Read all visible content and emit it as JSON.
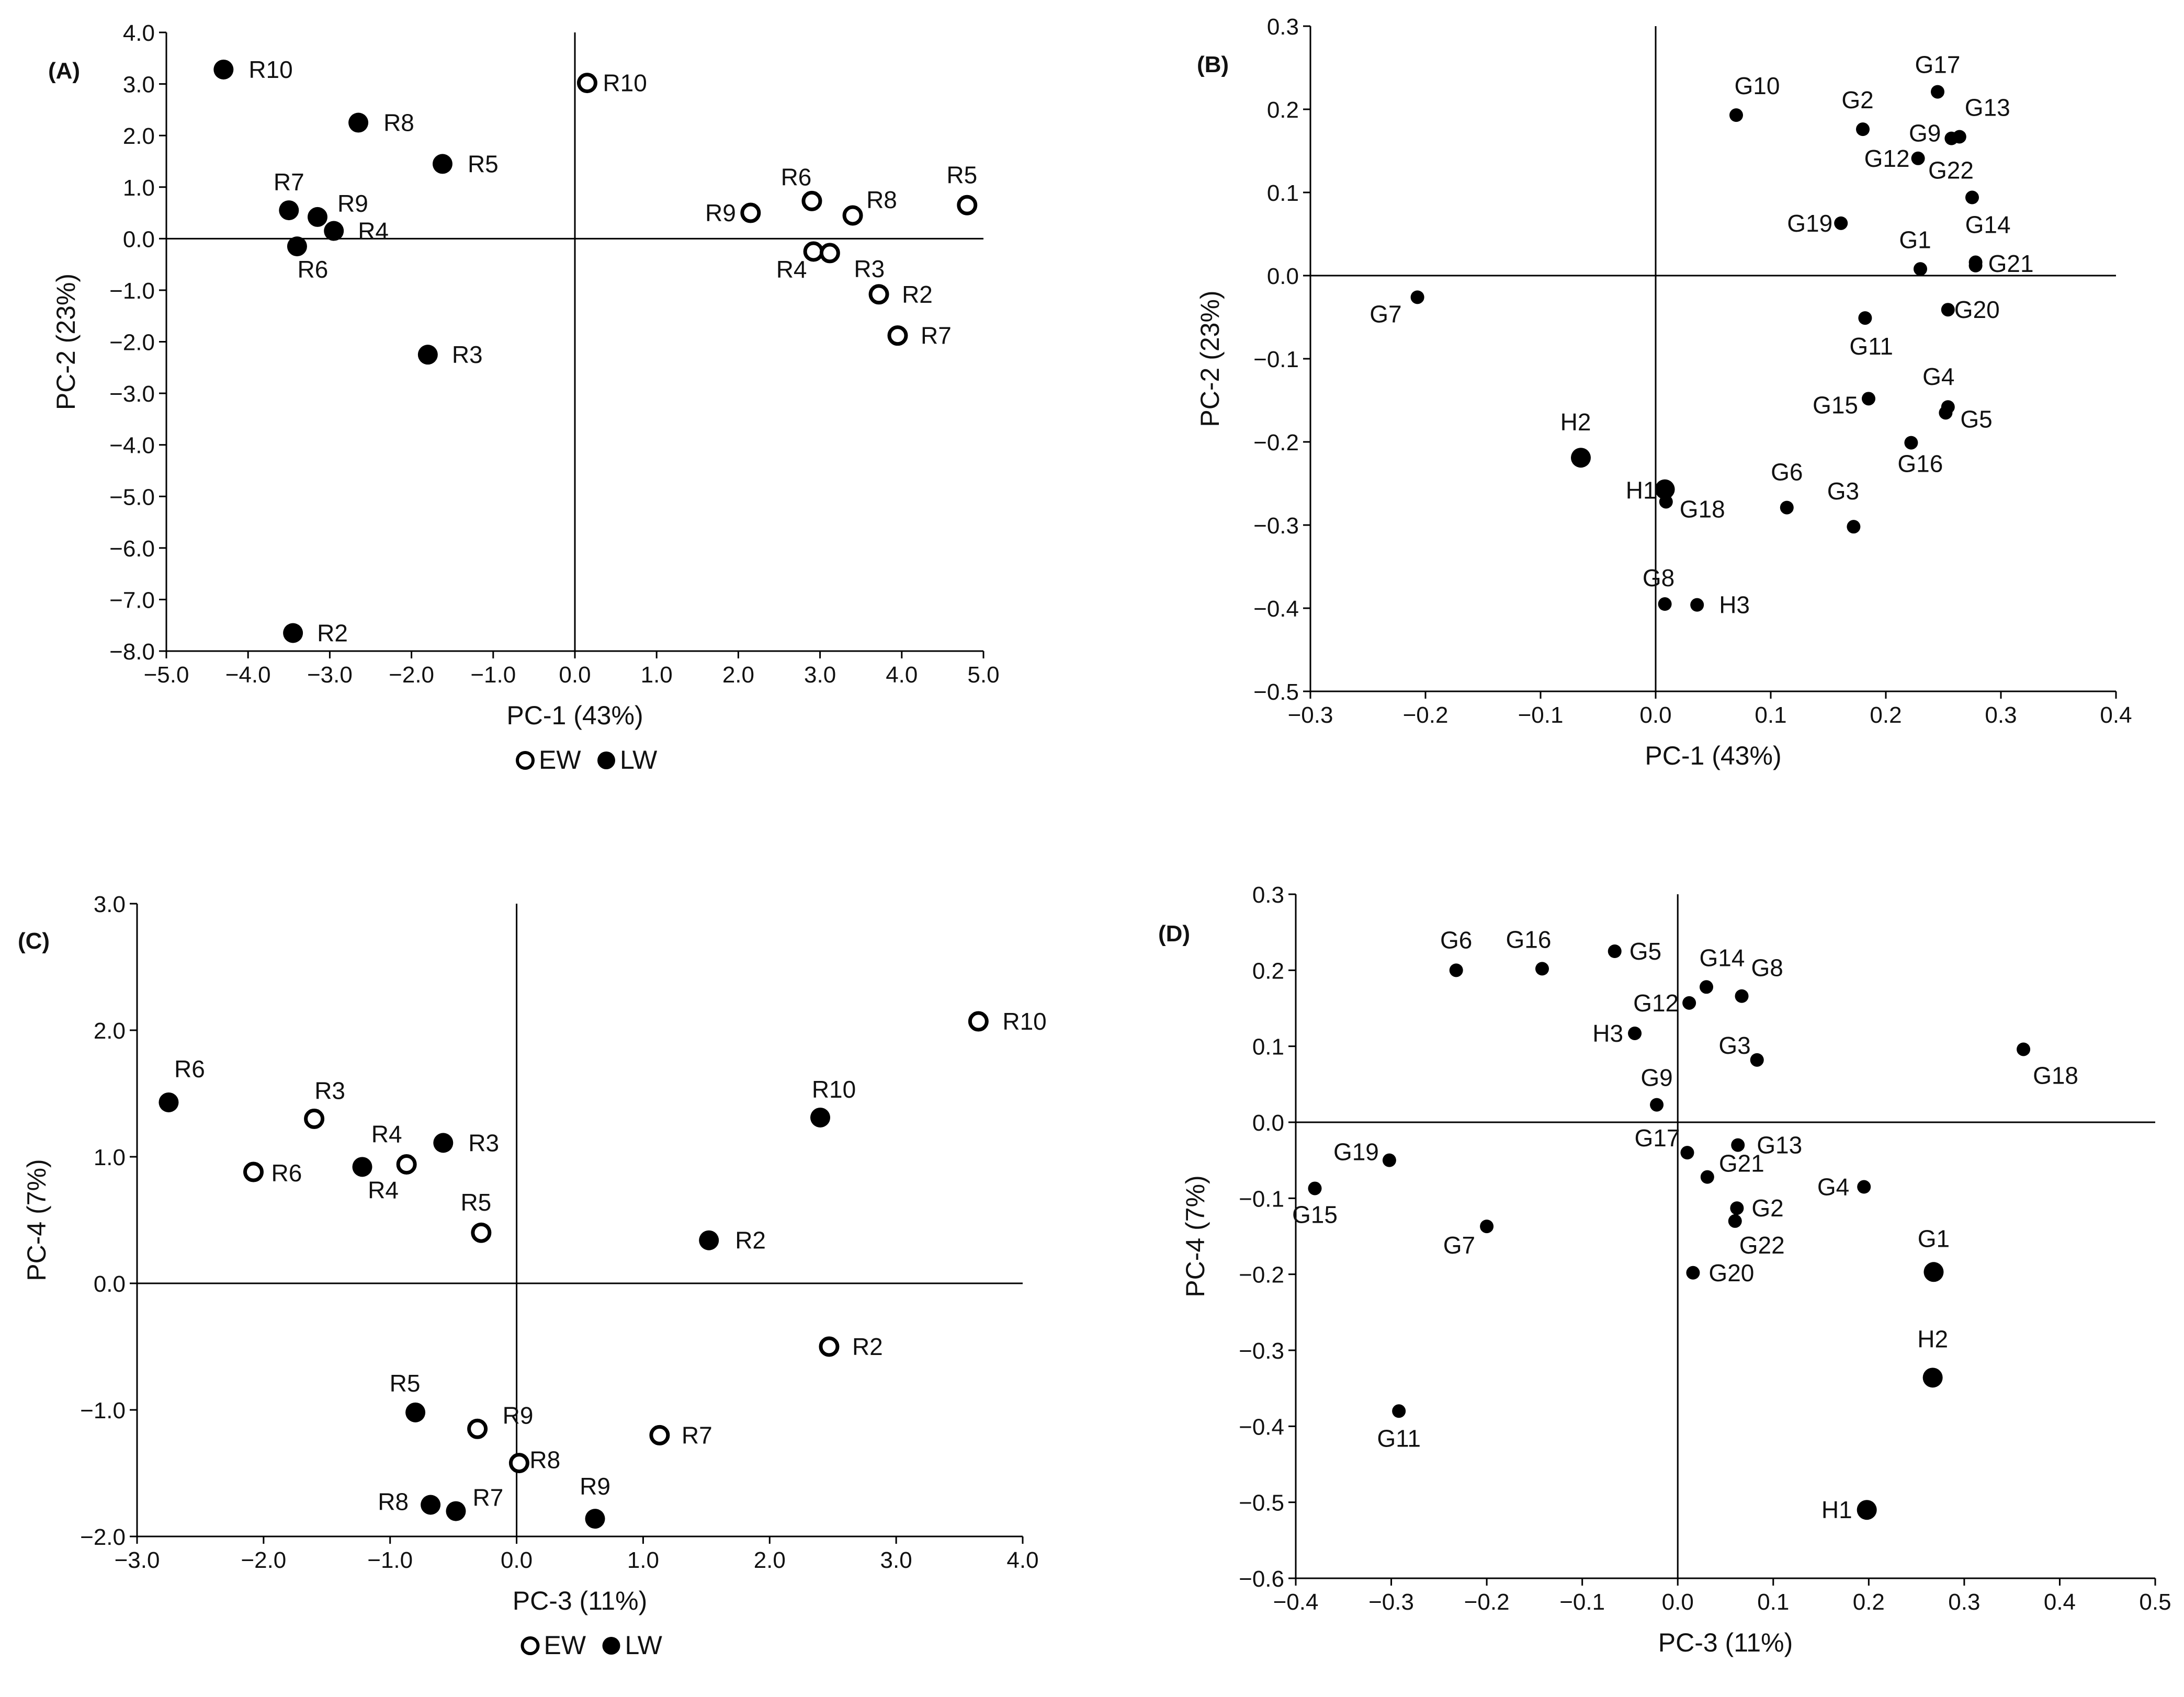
{
  "chart_data": [
    {
      "panel": "(A)",
      "type": "scatter",
      "xlabel": "PC-1 (43%)",
      "ylabel": "PC-2 (23%)",
      "xlim": [
        -5.0,
        5.0
      ],
      "ylim": [
        -8.0,
        4.0
      ],
      "xticks": [
        -5.0,
        -4.0,
        -3.0,
        -2.0,
        -1.0,
        0.0,
        1.0,
        2.0,
        3.0,
        4.0,
        5.0
      ],
      "yticks": [
        -8.0,
        -7.0,
        -6.0,
        -5.0,
        -4.0,
        -3.0,
        -2.0,
        -1.0,
        0.0,
        1.0,
        2.0,
        3.0,
        4.0
      ],
      "tick_decimals": 1,
      "legend": [
        "EW",
        "LW"
      ],
      "series": [
        {
          "name": "EW",
          "style": "open",
          "points": [
            {
              "label": "R10",
              "x": 0.15,
              "y": 3.02
            },
            {
              "label": "R9",
              "x": 2.15,
              "y": 0.5
            },
            {
              "label": "R6",
              "x": 2.9,
              "y": 0.73
            },
            {
              "label": "R8",
              "x": 3.4,
              "y": 0.45
            },
            {
              "label": "R5",
              "x": 4.8,
              "y": 0.65
            },
            {
              "label": "R4",
              "x": 2.92,
              "y": -0.25
            },
            {
              "label": "R3",
              "x": 3.12,
              "y": -0.28
            },
            {
              "label": "R2",
              "x": 3.72,
              "y": -1.08
            },
            {
              "label": "R7",
              "x": 3.95,
              "y": -1.88
            }
          ]
        },
        {
          "name": "LW",
          "style": "filled",
          "points": [
            {
              "label": "R10",
              "x": -4.3,
              "y": 3.28
            },
            {
              "label": "R8",
              "x": -2.65,
              "y": 2.25
            },
            {
              "label": "R5",
              "x": -1.62,
              "y": 1.45
            },
            {
              "label": "R7",
              "x": -3.5,
              "y": 0.55
            },
            {
              "label": "R9",
              "x": -3.15,
              "y": 0.42
            },
            {
              "label": "R4",
              "x": -2.95,
              "y": 0.15
            },
            {
              "label": "R6",
              "x": -3.4,
              "y": -0.15
            },
            {
              "label": "R3",
              "x": -1.8,
              "y": -2.25
            },
            {
              "label": "R2",
              "x": -3.45,
              "y": -7.65
            }
          ]
        }
      ]
    },
    {
      "panel": "(B)",
      "type": "scatter",
      "xlabel": "PC-1 (43%)",
      "ylabel": "PC-2 (23%)",
      "xlim": [
        -0.3,
        0.4
      ],
      "ylim": [
        -0.5,
        0.3
      ],
      "xticks": [
        -0.3,
        -0.2,
        -0.1,
        0.0,
        0.1,
        0.2,
        0.3,
        0.4
      ],
      "yticks": [
        -0.5,
        -0.4,
        -0.3,
        -0.2,
        -0.1,
        0.0,
        0.1,
        0.2,
        0.3
      ],
      "tick_decimals": 1,
      "series": [
        {
          "name": "G",
          "style": "small",
          "points": [
            {
              "label": "G1",
              "x": 0.23,
              "y": 0.008
            },
            {
              "label": "G2",
              "x": 0.18,
              "y": 0.176
            },
            {
              "label": "G3",
              "x": 0.172,
              "y": -0.302
            },
            {
              "label": "G4",
              "x": 0.254,
              "y": -0.158
            },
            {
              "label": "G5",
              "x": 0.252,
              "y": -0.165
            },
            {
              "label": "G6",
              "x": 0.114,
              "y": -0.279
            },
            {
              "label": "G7",
              "x": -0.207,
              "y": -0.026
            },
            {
              "label": "G8",
              "x": 0.008,
              "y": -0.395
            },
            {
              "label": "G9",
              "x": 0.257,
              "y": 0.165
            },
            {
              "label": "G10",
              "x": 0.07,
              "y": 0.193
            },
            {
              "label": "G11",
              "x": 0.182,
              "y": -0.051
            },
            {
              "label": "G12",
              "x": 0.228,
              "y": 0.141
            },
            {
              "label": "G13",
              "x": 0.264,
              "y": 0.167
            },
            {
              "label": "G14",
              "x": 0.278,
              "y": 0.016
            },
            {
              "label": "G15",
              "x": 0.185,
              "y": -0.148
            },
            {
              "label": "G16",
              "x": 0.222,
              "y": -0.201
            },
            {
              "label": "G17",
              "x": 0.245,
              "y": 0.221
            },
            {
              "label": "G19",
              "x": 0.161,
              "y": 0.063
            },
            {
              "label": "G20",
              "x": 0.254,
              "y": -0.041
            },
            {
              "label": "G21",
              "x": 0.278,
              "y": 0.012
            },
            {
              "label": "G22",
              "x": 0.275,
              "y": 0.094
            },
            {
              "label": "G18",
              "x": 0.009,
              "y": -0.272
            },
            {
              "label": "H3",
              "x": 0.036,
              "y": -0.396
            }
          ]
        },
        {
          "name": "H",
          "style": "filled",
          "points": [
            {
              "label": "H2",
              "x": -0.065,
              "y": -0.219
            },
            {
              "label": "H1",
              "x": 0.008,
              "y": -0.257
            }
          ]
        }
      ]
    },
    {
      "panel": "(C)",
      "type": "scatter",
      "xlabel": "PC-3 (11%)",
      "ylabel": "PC-4 (7%)",
      "xlim": [
        -3.0,
        4.0
      ],
      "ylim": [
        -2.0,
        3.0
      ],
      "xticks": [
        -3.0,
        -2.0,
        -1.0,
        0.0,
        1.0,
        2.0,
        3.0,
        4.0
      ],
      "yticks": [
        -2.0,
        -1.0,
        0.0,
        1.0,
        2.0,
        3.0
      ],
      "tick_decimals": 1,
      "legend": [
        "EW",
        "LW"
      ],
      "series": [
        {
          "name": "EW",
          "style": "open",
          "points": [
            {
              "label": "R10",
              "x": 3.65,
              "y": 2.07
            },
            {
              "label": "R3",
              "x": -1.6,
              "y": 1.3
            },
            {
              "label": "R6",
              "x": -2.08,
              "y": 0.88
            },
            {
              "label": "R4",
              "x": -0.87,
              "y": 0.94
            },
            {
              "label": "R5",
              "x": -0.28,
              "y": 0.4
            },
            {
              "label": "R2",
              "x": 2.47,
              "y": -0.5
            },
            {
              "label": "R9",
              "x": -0.31,
              "y": -1.15
            },
            {
              "label": "R7",
              "x": 1.13,
              "y": -1.2
            },
            {
              "label": "R8",
              "x": 0.02,
              "y": -1.42
            }
          ]
        },
        {
          "name": "LW",
          "style": "filled",
          "points": [
            {
              "label": "R6",
              "x": -2.75,
              "y": 1.43
            },
            {
              "label": "R3",
              "x": -0.58,
              "y": 1.11
            },
            {
              "label": "R4",
              "x": -1.22,
              "y": 0.92
            },
            {
              "label": "R10",
              "x": 2.4,
              "y": 1.31
            },
            {
              "label": "R2",
              "x": 1.52,
              "y": 0.34
            },
            {
              "label": "R5",
              "x": -0.8,
              "y": -1.02
            },
            {
              "label": "R8",
              "x": -0.68,
              "y": -1.75
            },
            {
              "label": "R7",
              "x": -0.48,
              "y": -1.8
            },
            {
              "label": "R9",
              "x": 0.62,
              "y": -1.86
            }
          ]
        }
      ]
    },
    {
      "panel": "(D)",
      "type": "scatter",
      "xlabel": "PC-3 (11%)",
      "ylabel": "PC-4 (7%)",
      "xlim": [
        -0.4,
        0.5
      ],
      "ylim": [
        -0.6,
        0.3
      ],
      "xticks": [
        -0.4,
        -0.3,
        -0.2,
        -0.1,
        0.0,
        0.1,
        0.2,
        0.3,
        0.4,
        0.5
      ],
      "yticks": [
        -0.6,
        -0.5,
        -0.4,
        -0.3,
        -0.2,
        -0.1,
        0.0,
        0.1,
        0.2,
        0.3
      ],
      "tick_decimals": 1,
      "series": [
        {
          "name": "G",
          "style": "small",
          "points": [
            {
              "label": "G6",
              "x": -0.232,
              "y": 0.2
            },
            {
              "label": "G16",
              "x": -0.142,
              "y": 0.202
            },
            {
              "label": "G5",
              "x": -0.066,
              "y": 0.225
            },
            {
              "label": "G14",
              "x": 0.03,
              "y": 0.178
            },
            {
              "label": "G8",
              "x": 0.067,
              "y": 0.166
            },
            {
              "label": "G12",
              "x": 0.012,
              "y": 0.157
            },
            {
              "label": "H3",
              "x": -0.045,
              "y": 0.117
            },
            {
              "label": "G3",
              "x": 0.083,
              "y": 0.082
            },
            {
              "label": "G18",
              "x": 0.362,
              "y": 0.096
            },
            {
              "label": "G9",
              "x": -0.022,
              "y": 0.023
            },
            {
              "label": "G17",
              "x": 0.01,
              "y": -0.04
            },
            {
              "label": "G13",
              "x": 0.063,
              "y": -0.03
            },
            {
              "label": "G19",
              "x": -0.302,
              "y": -0.05
            },
            {
              "label": "G21",
              "x": 0.031,
              "y": -0.072
            },
            {
              "label": "G15",
              "x": -0.38,
              "y": -0.087
            },
            {
              "label": "G4",
              "x": 0.195,
              "y": -0.085
            },
            {
              "label": "G2",
              "x": 0.062,
              "y": -0.113
            },
            {
              "label": "G22",
              "x": 0.06,
              "y": -0.13
            },
            {
              "label": "G7",
              "x": -0.2,
              "y": -0.137
            },
            {
              "label": "G20",
              "x": 0.016,
              "y": -0.198
            },
            {
              "label": "G11",
              "x": -0.292,
              "y": -0.38
            }
          ]
        },
        {
          "name": "H",
          "style": "filled",
          "points": [
            {
              "label": "G1",
              "x": 0.268,
              "y": -0.197
            },
            {
              "label": "H2",
              "x": 0.267,
              "y": -0.336
            },
            {
              "label": "H1",
              "x": 0.198,
              "y": -0.51
            }
          ]
        }
      ]
    }
  ]
}
